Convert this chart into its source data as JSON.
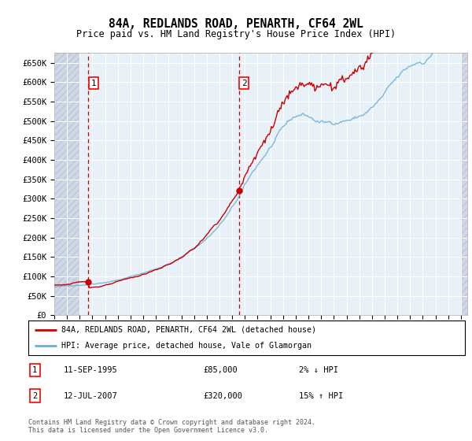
{
  "title": "84A, REDLANDS ROAD, PENARTH, CF64 2WL",
  "subtitle": "Price paid vs. HM Land Registry's House Price Index (HPI)",
  "ylabel_ticks": [
    "£0",
    "£50K",
    "£100K",
    "£150K",
    "£200K",
    "£250K",
    "£300K",
    "£350K",
    "£400K",
    "£450K",
    "£500K",
    "£550K",
    "£600K",
    "£650K"
  ],
  "ylim": [
    0,
    675000
  ],
  "ytick_vals": [
    0,
    50000,
    100000,
    150000,
    200000,
    250000,
    300000,
    350000,
    400000,
    450000,
    500000,
    550000,
    600000,
    650000
  ],
  "hpi_line_color": "#6baed6",
  "price_line_color": "#cc0000",
  "plot_bg_color": "#e8f0f8",
  "hatch_bg_color": "#d0d8e8",
  "legend_label_red": "84A, REDLANDS ROAD, PENARTH, CF64 2WL (detached house)",
  "legend_label_blue": "HPI: Average price, detached house, Vale of Glamorgan",
  "sale1_date": "11-SEP-1995",
  "sale1_price": "£85,000",
  "sale1_pct": "2% ↓ HPI",
  "sale2_date": "12-JUL-2007",
  "sale2_price": "£320,000",
  "sale2_pct": "15% ↑ HPI",
  "footnote": "Contains HM Land Registry data © Crown copyright and database right 2024.\nThis data is licensed under the Open Government Licence v3.0.",
  "sale1_year": 1995.69,
  "sale1_val": 85000,
  "sale2_year": 2007.53,
  "sale2_val": 320000,
  "xlim_left": 1993.0,
  "xlim_right": 2025.5
}
